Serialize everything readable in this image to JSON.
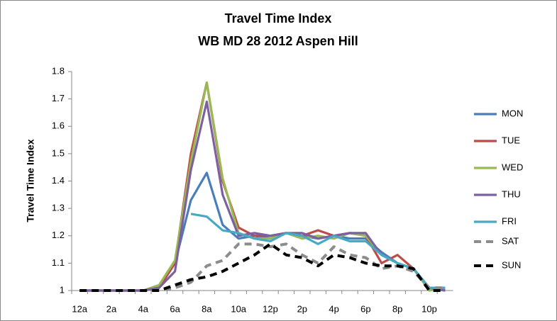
{
  "chart_data": {
    "type": "line",
    "title": "Travel Time Index",
    "subtitle": "WB MD 28 2012 Aspen Hill",
    "y_label": "Travel Time Index",
    "categories": [
      "12a",
      null,
      "2a",
      null,
      "4a",
      null,
      "6a",
      null,
      "8a",
      null,
      "10a",
      null,
      "12p",
      null,
      "2p",
      null,
      "4p",
      null,
      "6p",
      null,
      "8p",
      null,
      "10p",
      null
    ],
    "ylim": [
      1,
      1.8
    ],
    "yticks": [
      1,
      1.1,
      1.2,
      1.3,
      1.4,
      1.5,
      1.6,
      1.7,
      1.8
    ],
    "grid": false,
    "legend": "right",
    "series": [
      {
        "name": "MON",
        "color": "#4a7ebb",
        "dashed": false,
        "values": [
          1,
          1,
          1,
          1,
          1,
          1.01,
          1.1,
          1.33,
          1.43,
          1.24,
          1.19,
          1.2,
          1.19,
          1.21,
          1.2,
          1.19,
          1.2,
          1.19,
          1.19,
          1.14,
          1.1,
          1.08,
          1.01,
          1.0
        ]
      },
      {
        "name": "TUE",
        "color": "#be4b48",
        "dashed": false,
        "values": [
          1,
          1,
          1,
          1,
          1,
          1.01,
          1.1,
          1.5,
          1.76,
          1.4,
          1.23,
          1.2,
          1.2,
          1.21,
          1.2,
          1.22,
          1.2,
          1.21,
          1.2,
          1.1,
          1.13,
          1.08,
          1.01,
          1.0
        ]
      },
      {
        "name": "WED",
        "color": "#98b954",
        "dashed": false,
        "values": [
          1,
          1,
          1,
          1,
          1,
          1.02,
          1.11,
          1.47,
          1.76,
          1.41,
          1.21,
          1.19,
          1.19,
          1.21,
          1.19,
          1.2,
          1.19,
          1.21,
          1.2,
          1.13,
          1.1,
          1.08,
          1.0,
          1.01
        ]
      },
      {
        "name": "THU",
        "color": "#7d60a0",
        "dashed": false,
        "values": [
          1,
          1,
          1,
          1,
          1,
          1.01,
          1.07,
          1.44,
          1.69,
          1.35,
          1.2,
          1.21,
          1.2,
          1.21,
          1.21,
          1.19,
          1.2,
          1.21,
          1.21,
          1.13,
          1.1,
          1.08,
          1.01,
          1.0
        ]
      },
      {
        "name": "FRI",
        "color": "#46aac5",
        "dashed": false,
        "values": [
          null,
          null,
          null,
          null,
          null,
          null,
          null,
          1.28,
          1.27,
          1.22,
          1.21,
          1.19,
          1.18,
          1.21,
          1.2,
          1.17,
          1.2,
          1.18,
          1.18,
          1.13,
          1.1,
          1.08,
          1.01,
          1.01
        ]
      },
      {
        "name": "SAT",
        "color": "#8c8c8c",
        "dashed": true,
        "values": [
          1,
          1,
          1,
          1,
          1,
          1,
          1.01,
          1.03,
          1.09,
          1.11,
          1.17,
          1.17,
          1.16,
          1.17,
          1.13,
          1.1,
          1.16,
          1.13,
          1.12,
          1.08,
          1.09,
          1.07,
          1.01,
          1.01
        ]
      },
      {
        "name": "SUN",
        "color": "#000000",
        "dashed": true,
        "values": [
          1,
          1,
          1,
          1,
          1,
          1,
          1.02,
          1.04,
          1.05,
          1.07,
          1.1,
          1.13,
          1.17,
          1.13,
          1.12,
          1.09,
          1.13,
          1.12,
          1.1,
          1.09,
          1.09,
          1.08,
          1.0,
          1.0
        ]
      }
    ]
  }
}
